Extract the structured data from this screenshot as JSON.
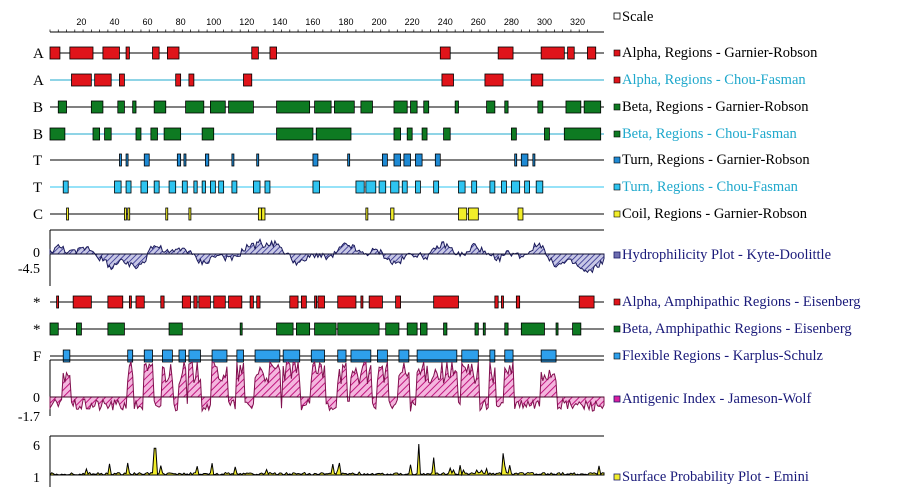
{
  "chart_data": {
    "type": "protean_protein_analysis",
    "scale": {
      "label": "Scale",
      "ticks": [
        20,
        40,
        60,
        80,
        100,
        120,
        140,
        160,
        180,
        200,
        220,
        240,
        260,
        280,
        300,
        320
      ],
      "range": [
        1,
        336
      ]
    },
    "tracks": [
      {
        "row_label": "A",
        "label": "Alpha, Regions - Garnier-Robson",
        "color": "#e0141a",
        "text_color": "#000000",
        "segments": [
          [
            1,
            7
          ],
          [
            13,
            27
          ],
          [
            33,
            43
          ],
          [
            47,
            49
          ],
          [
            63,
            67
          ],
          [
            72,
            79
          ],
          [
            123,
            127
          ],
          [
            134,
            138
          ],
          [
            237,
            243
          ],
          [
            272,
            281
          ],
          [
            298,
            312
          ],
          [
            314,
            318
          ],
          [
            326,
            331
          ]
        ]
      },
      {
        "row_label": "A",
        "label": "Alpha, Regions - Chou-Fasman",
        "color": "#e0141a",
        "text_color": "#1fa8cc",
        "line_color": "#1fa8cc",
        "segments": [
          [
            14,
            26
          ],
          [
            28,
            38
          ],
          [
            43,
            46
          ],
          [
            77,
            80
          ],
          [
            85,
            88
          ],
          [
            118,
            123
          ],
          [
            238,
            245
          ],
          [
            264,
            275
          ],
          [
            292,
            299
          ]
        ]
      },
      {
        "row_label": "B",
        "label": "Beta, Regions - Garnier-Robson",
        "color": "#0e7a22",
        "text_color": "#000000",
        "segments": [
          [
            6,
            11
          ],
          [
            26,
            33
          ],
          [
            42,
            46
          ],
          [
            51,
            53
          ],
          [
            64,
            71
          ],
          [
            83,
            94
          ],
          [
            98,
            107
          ],
          [
            109,
            124
          ],
          [
            138,
            158
          ],
          [
            161,
            171
          ],
          [
            173,
            185
          ],
          [
            189,
            196
          ],
          [
            209,
            217
          ],
          [
            219,
            223
          ],
          [
            227,
            230
          ],
          [
            246,
            248
          ],
          [
            265,
            270
          ],
          [
            276,
            278
          ],
          [
            296,
            299
          ],
          [
            313,
            322
          ],
          [
            324,
            334
          ]
        ]
      },
      {
        "row_label": "B",
        "label": "Beta, Regions - Chou-Fasman",
        "color": "#0e7a22",
        "text_color": "#1fa8cc",
        "line_color": "#1fa8cc",
        "segments": [
          [
            1,
            10
          ],
          [
            27,
            31
          ],
          [
            34,
            38
          ],
          [
            53,
            56
          ],
          [
            62,
            66
          ],
          [
            70,
            80
          ],
          [
            93,
            100
          ],
          [
            138,
            160
          ],
          [
            162,
            183
          ],
          [
            209,
            213
          ],
          [
            217,
            220
          ],
          [
            226,
            229
          ],
          [
            239,
            243
          ],
          [
            280,
            283
          ],
          [
            300,
            303
          ],
          [
            312,
            334
          ]
        ]
      },
      {
        "row_label": "T",
        "label": "Turn, Regions - Garnier-Robson",
        "color": "#1f8ad4",
        "text_color": "#000000",
        "segments": [
          [
            43,
            44
          ],
          [
            47,
            48
          ],
          [
            58,
            61
          ],
          [
            78,
            80
          ],
          [
            82,
            83
          ],
          [
            95,
            97
          ],
          [
            111,
            112
          ],
          [
            126,
            127
          ],
          [
            160,
            163
          ],
          [
            181,
            182
          ],
          [
            202,
            205
          ],
          [
            209,
            213
          ],
          [
            215,
            219
          ],
          [
            222,
            226
          ],
          [
            234,
            237
          ],
          [
            282,
            283
          ],
          [
            286,
            290
          ],
          [
            293,
            294
          ]
        ]
      },
      {
        "row_label": "T",
        "label": "Turn, Regions - Chou-Fasman",
        "color": "#2ec4f0",
        "text_color": "#1fa8cc",
        "line_color": "#2ec4f0",
        "segments": [
          [
            9,
            12
          ],
          [
            40,
            44
          ],
          [
            47,
            50
          ],
          [
            56,
            60
          ],
          [
            64,
            67
          ],
          [
            73,
            77
          ],
          [
            81,
            84
          ],
          [
            88,
            90
          ],
          [
            93,
            95
          ],
          [
            98,
            101
          ],
          [
            103,
            106
          ],
          [
            111,
            114
          ],
          [
            124,
            128
          ],
          [
            131,
            134
          ],
          [
            160,
            164
          ],
          [
            186,
            191
          ],
          [
            192,
            198
          ],
          [
            200,
            204
          ],
          [
            207,
            212
          ],
          [
            214,
            217
          ],
          [
            222,
            225
          ],
          [
            233,
            236
          ],
          [
            248,
            252
          ],
          [
            256,
            259
          ],
          [
            267,
            270
          ],
          [
            274,
            277
          ],
          [
            280,
            285
          ],
          [
            288,
            291
          ],
          [
            295,
            299
          ]
        ]
      },
      {
        "row_label": "C",
        "label": "Coil, Regions - Garnier-Robson",
        "color": "#f2ee2a",
        "text_color": "#000000",
        "segments": [
          [
            11,
            12
          ],
          [
            46,
            47
          ],
          [
            48,
            49
          ],
          [
            71,
            72
          ],
          [
            85,
            86
          ],
          [
            127,
            129
          ],
          [
            129,
            131
          ],
          [
            192,
            193
          ],
          [
            207,
            209
          ],
          [
            248,
            253
          ],
          [
            254,
            260
          ],
          [
            284,
            287
          ]
        ]
      },
      {
        "row_label": "",
        "label": "Hydrophilicity Plot - Kyte-Doolittle",
        "color": "#1a1a8a",
        "text_color": "#1a1a7a",
        "kind": "plot",
        "ylim": [
          -4.5,
          4.5
        ],
        "y_labels": [
          "0",
          "-4.5"
        ]
      },
      {
        "row_label": "*",
        "label": "Alpha, Amphipathic Regions - Eisenberg",
        "color": "#e0141a",
        "text_color": "#1a1a7a",
        "segments": [
          [
            5,
            6
          ],
          [
            15,
            26
          ],
          [
            36,
            45
          ],
          [
            49,
            50
          ],
          [
            53,
            58
          ],
          [
            68,
            70
          ],
          [
            81,
            86
          ],
          [
            88,
            90
          ],
          [
            91,
            98
          ],
          [
            100,
            107
          ],
          [
            109,
            117
          ],
          [
            122,
            124
          ],
          [
            126,
            128
          ],
          [
            146,
            151
          ],
          [
            153,
            156
          ],
          [
            161,
            162
          ],
          [
            163,
            167
          ],
          [
            175,
            186
          ],
          [
            189,
            190
          ],
          [
            194,
            202
          ],
          [
            210,
            213
          ],
          [
            233,
            248
          ],
          [
            270,
            272
          ],
          [
            274,
            275
          ],
          [
            283,
            285
          ],
          [
            321,
            330
          ]
        ]
      },
      {
        "row_label": "*",
        "label": "Beta, Amphipathic Regions - Eisenberg",
        "color": "#0e7a22",
        "text_color": "#1a1a7a",
        "segments": [
          [
            1,
            6
          ],
          [
            17,
            20
          ],
          [
            36,
            46
          ],
          [
            73,
            81
          ],
          [
            116,
            117
          ],
          [
            138,
            148
          ],
          [
            150,
            158
          ],
          [
            161,
            174
          ],
          [
            175,
            200
          ],
          [
            204,
            212
          ],
          [
            217,
            223
          ],
          [
            225,
            229
          ],
          [
            239,
            241
          ],
          [
            258,
            260
          ],
          [
            263,
            264
          ],
          [
            276,
            278
          ],
          [
            286,
            300
          ],
          [
            307,
            308
          ],
          [
            317,
            322
          ]
        ]
      },
      {
        "row_label": "F",
        "label": "Flexible Regions - Karplus-Schulz",
        "color": "#2ea0ec",
        "text_color": "#1a1a7a",
        "segments": [
          [
            9,
            13
          ],
          [
            48,
            51
          ],
          [
            58,
            63
          ],
          [
            69,
            75
          ],
          [
            79,
            83
          ],
          [
            85,
            92
          ],
          [
            99,
            108
          ],
          [
            114,
            118
          ],
          [
            125,
            140
          ],
          [
            142,
            152
          ],
          [
            159,
            167
          ],
          [
            175,
            180
          ],
          [
            183,
            195
          ],
          [
            199,
            205
          ],
          [
            212,
            218
          ],
          [
            223,
            247
          ],
          [
            250,
            260
          ],
          [
            267,
            270
          ],
          [
            276,
            281
          ],
          [
            298,
            307
          ]
        ]
      },
      {
        "row_label": "",
        "label": "Antigenic Index - Jameson-Wolf",
        "color": "#d91e9e",
        "text_color": "#1a1a7a",
        "kind": "plot",
        "ylim": [
          -1.7,
          1.7
        ],
        "y_labels": [
          "0",
          "-1.7"
        ]
      },
      {
        "row_label": "",
        "label": "Surface Probability Plot - Emini",
        "color": "#f2ee2a",
        "text_color": "#1a1a7a",
        "kind": "plot",
        "ylim": [
          0,
          6
        ],
        "y_labels": [
          "6",
          "1"
        ]
      }
    ]
  }
}
